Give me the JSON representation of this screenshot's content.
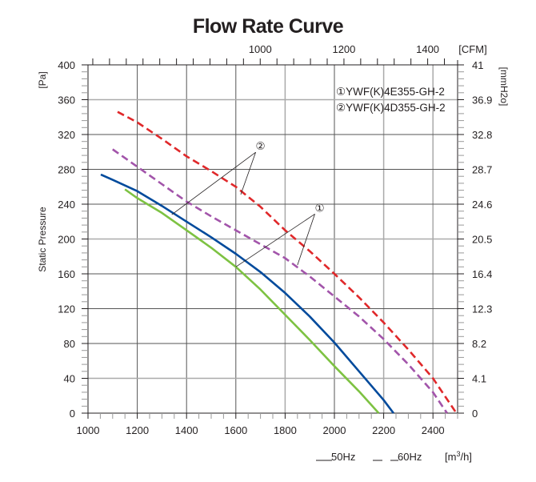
{
  "chart_data": {
    "type": "line",
    "title": "Flow Rate Curve",
    "xlabel": "[m³/h]",
    "xlabel_unit_base": "[m",
    "xlabel_unit_sup": "3",
    "xlabel_unit_tail": "/h]",
    "ylabel": "Static Pressure",
    "ylabel_unit": "[Pa]",
    "y2label_unit": "[mmH2o]",
    "x2label_unit": "[CFM]",
    "xlim": [
      1000,
      2520
    ],
    "ylim": [
      0,
      400
    ],
    "x_ticks": [
      1000,
      1200,
      1400,
      1600,
      1800,
      2000,
      2200,
      2400
    ],
    "x_tick_labels": [
      "1000",
      "1200",
      "1400",
      "1600",
      "1800",
      "2000",
      "2200",
      "2400"
    ],
    "y_ticks": [
      0,
      40,
      80,
      120,
      160,
      200,
      240,
      280,
      320,
      360,
      400
    ],
    "y_tick_labels": [
      "0",
      "40",
      "80",
      "120",
      "160",
      "200",
      "240",
      "280",
      "320",
      "360",
      "400"
    ],
    "y2_tick_labels": [
      "0",
      "4.1",
      "8.2",
      "12.3",
      "16.4",
      "20.5",
      "24.6",
      "28.7",
      "32.8",
      "36.9",
      "41"
    ],
    "x2_cfm_per_m3h": 0.5886,
    "x2_ticks": [
      1000,
      1200,
      1400
    ],
    "x2_tick_labels": [
      "1000",
      "1200",
      "1400"
    ],
    "grid": true,
    "legend": {
      "placement": "top-right",
      "models": [
        {
          "marker": "①",
          "name": "YWF(K)4E355-GH-2"
        },
        {
          "marker": "②",
          "name": "YWF(K)4D355-GH-2"
        }
      ],
      "line_styles": [
        {
          "style": "solid",
          "label": "50Hz"
        },
        {
          "style": "dashed",
          "label": "60Hz"
        }
      ]
    },
    "series": [
      {
        "name": "YWF(K)4E355-GH-2 50Hz",
        "model": "①",
        "frequency": "50Hz",
        "style": "solid",
        "color": "#7dc242",
        "x": [
          1150,
          1200,
          1300,
          1400,
          1500,
          1600,
          1700,
          1800,
          1900,
          2000,
          2100,
          2180
        ],
        "y": [
          257,
          247,
          230,
          210,
          190,
          168,
          142,
          113,
          84,
          54,
          25,
          0
        ]
      },
      {
        "name": "YWF(K)4E355-GH-2 60Hz",
        "model": "①",
        "frequency": "60Hz",
        "style": "dashed",
        "color": "#a254aa",
        "x": [
          1100,
          1200,
          1300,
          1400,
          1500,
          1600,
          1700,
          1800,
          1900,
          2000,
          2100,
          2200,
          2300,
          2400,
          2457
        ],
        "y": [
          303,
          283,
          263,
          243,
          226,
          210,
          194,
          178,
          157,
          134,
          111,
          85,
          56,
          24,
          0
        ]
      },
      {
        "name": "YWF(K)4D355-GH-2 50Hz",
        "model": "②",
        "frequency": "50Hz",
        "style": "solid",
        "color": "#004a9c",
        "x": [
          1052,
          1100,
          1200,
          1300,
          1400,
          1500,
          1600,
          1700,
          1800,
          1900,
          2000,
          2100,
          2200,
          2240
        ],
        "y": [
          274,
          268,
          255,
          238,
          220,
          202,
          183,
          162,
          138,
          111,
          81,
          48,
          15,
          0
        ]
      },
      {
        "name": "YWF(K)4D355-GH-2 60Hz",
        "model": "②",
        "frequency": "60Hz",
        "style": "dashed",
        "color": "#e0282a",
        "x": [
          1120,
          1200,
          1300,
          1400,
          1500,
          1600,
          1700,
          1800,
          1900,
          2000,
          2100,
          2200,
          2300,
          2400,
          2495
        ],
        "y": [
          346,
          334,
          315,
          295,
          278,
          260,
          237,
          210,
          186,
          160,
          133,
          104,
          73,
          40,
          0
        ]
      }
    ],
    "annotations": [
      {
        "marker": "②",
        "text": "②",
        "points_to": [
          "YWF(K)4D355-GH-2 50Hz",
          "YWF(K)4D355-GH-2 60Hz"
        ],
        "at": [
          1700,
          307
        ],
        "targets": [
          [
            1340,
            228
          ],
          [
            1620,
            251
          ]
        ]
      },
      {
        "marker": "①",
        "text": "①",
        "points_to": [
          "YWF(K)4E355-GH-2 50Hz",
          "YWF(K)4E355-GH-2 60Hz"
        ],
        "at": [
          1940,
          236
        ],
        "targets": [
          [
            1600,
            168
          ],
          [
            1850,
            170
          ]
        ]
      }
    ]
  }
}
